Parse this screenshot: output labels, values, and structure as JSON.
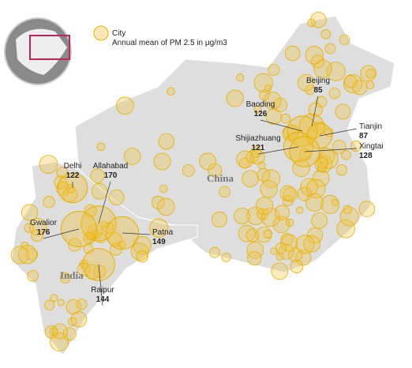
{
  "chart_data": {
    "type": "bubble-map",
    "legend": {
      "marker": "City",
      "size": "Annual mean of PM 2.5 in μg/m3"
    },
    "annotations": [
      "China",
      "India"
    ],
    "categories": [
      "Beijing",
      "Baoding",
      "Tianjin",
      "Shijiazhuang",
      "Xingtai",
      "Delhi",
      "Allahabad",
      "Gwalior",
      "Patna",
      "Raipur"
    ],
    "values": [
      85,
      126,
      87,
      121,
      128,
      122,
      170,
      176,
      149,
      144
    ],
    "color": "#f2c12e"
  }
}
